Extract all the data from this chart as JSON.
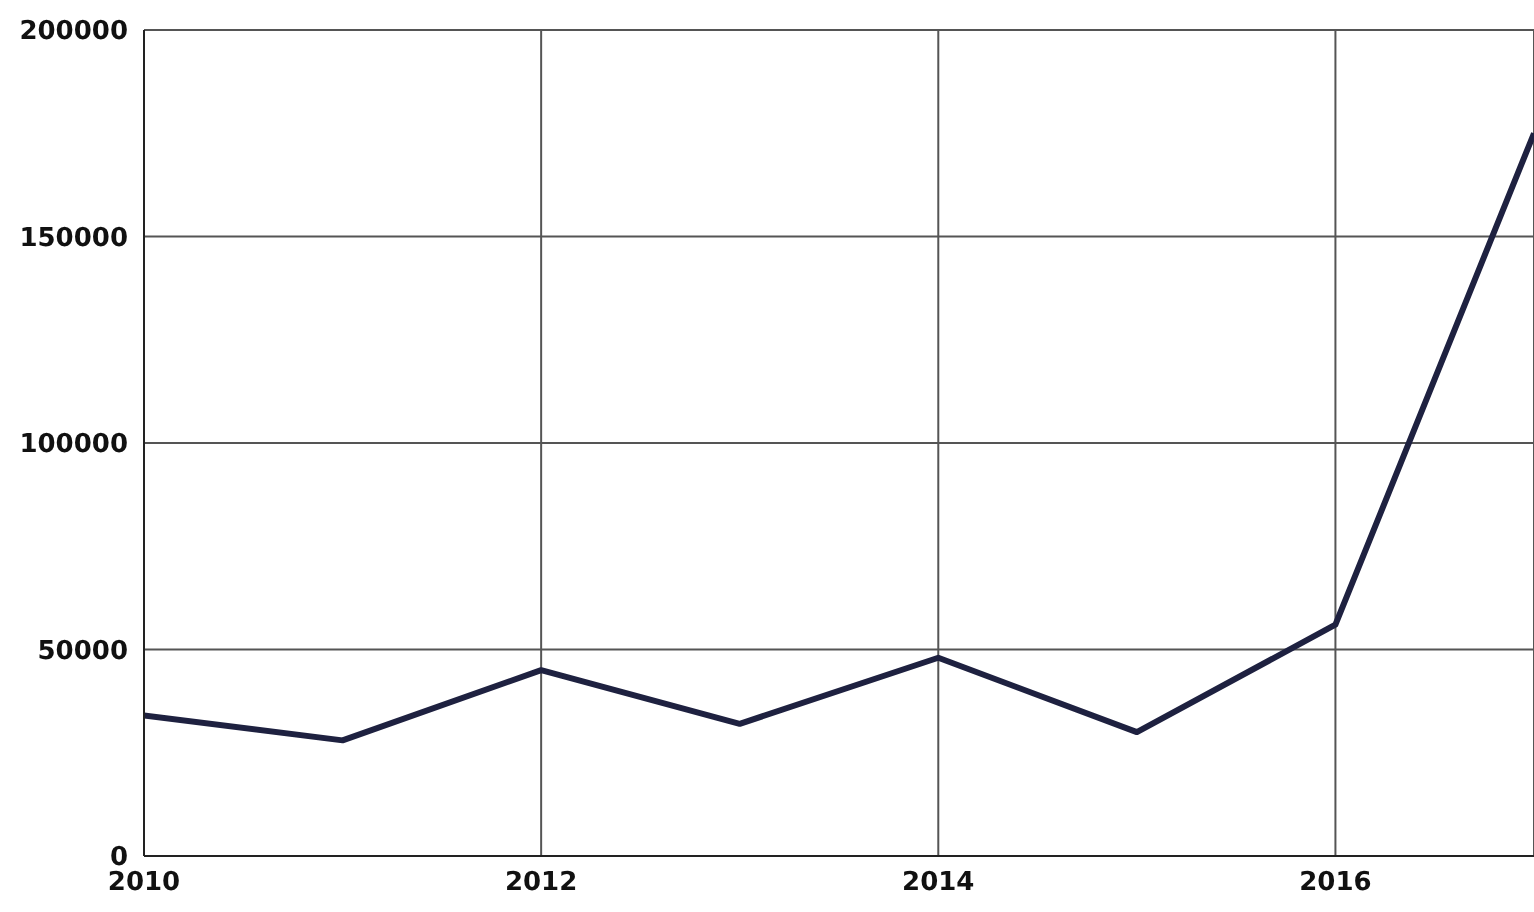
{
  "chart_data": {
    "type": "line",
    "x": [
      2010,
      2011,
      2012,
      2013,
      2014,
      2015,
      2016,
      2017
    ],
    "series": [
      {
        "color": "#1e2140",
        "values": [
          34000,
          28000,
          45000,
          32000,
          48000,
          30000,
          56000,
          175000
        ]
      }
    ],
    "xlim": [
      2010,
      2017
    ],
    "xticks": [
      2010,
      2012,
      2014,
      2016
    ],
    "ylim": [
      0,
      200000
    ],
    "yticks": [
      0,
      50000,
      100000,
      150000,
      200000
    ],
    "grid": true,
    "marker": "none",
    "line_style": "solid"
  }
}
